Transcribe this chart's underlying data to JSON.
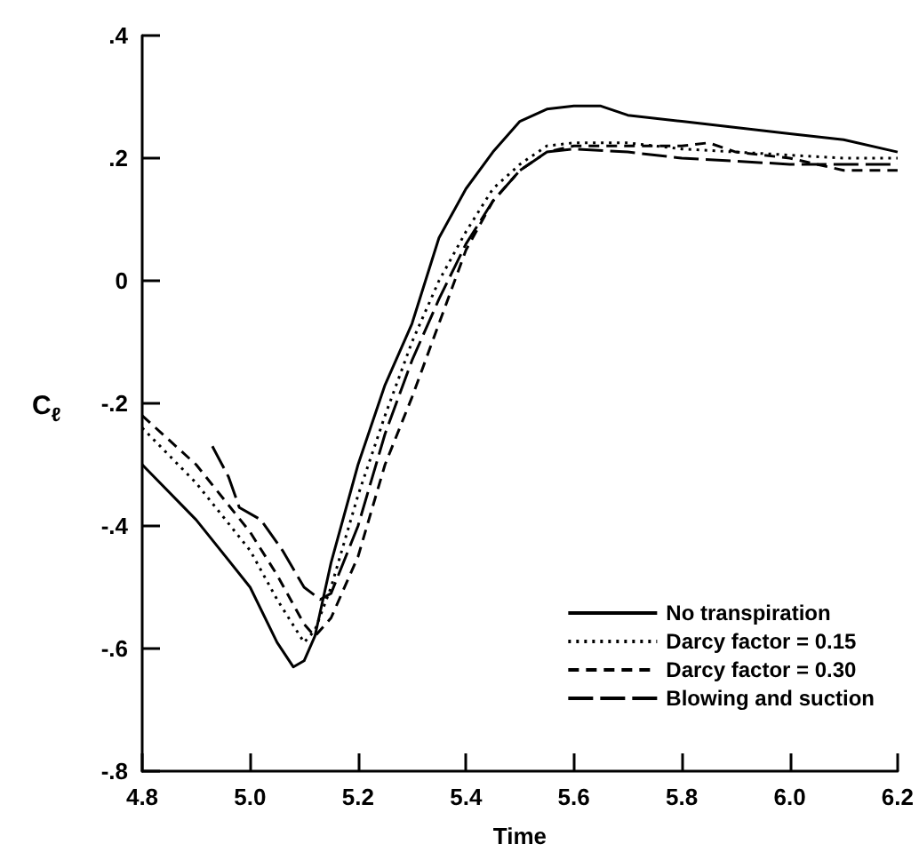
{
  "chart_data": {
    "type": "line",
    "xlabel": "Time",
    "ylabel": "C$_{ℓ}$",
    "xlim": [
      4.8,
      6.2
    ],
    "ylim": [
      -0.8,
      0.4
    ],
    "xticks": [
      4.8,
      {
        "value": 5.0,
        "label": "5.0"
      },
      5.2,
      5.4,
      5.6,
      5.8,
      {
        "value": 6.0,
        "label": "6.0"
      },
      6.2
    ],
    "yticks": [
      {
        "value": -0.8,
        "label": "-.8"
      },
      {
        "value": -0.6,
        "label": "-.6"
      },
      {
        "value": -0.4,
        "label": "-.4"
      },
      {
        "value": -0.2,
        "label": "-.2"
      },
      0,
      {
        "value": 0.2,
        "label": ".2"
      },
      {
        "value": 0.4,
        "label": ".4"
      }
    ],
    "grid": false,
    "legend": "bottom right",
    "marker": "none",
    "series": [
      {
        "name": "No transpiration",
        "color": "#000000",
        "line_style": "solid",
        "x": [
          4.8,
          4.9,
          5.0,
          5.05,
          5.08,
          5.1,
          5.12,
          5.15,
          5.2,
          5.25,
          5.3,
          5.35,
          5.4,
          5.45,
          5.5,
          5.55,
          5.6,
          5.65,
          5.7,
          5.8,
          5.9,
          6.0,
          6.1,
          6.2
        ],
        "values": [
          -0.3,
          -0.39,
          -0.5,
          -0.59,
          -0.63,
          -0.62,
          -0.58,
          -0.46,
          -0.3,
          -0.17,
          -0.07,
          0.07,
          0.15,
          0.21,
          0.26,
          0.28,
          0.285,
          0.285,
          0.27,
          0.26,
          0.25,
          0.24,
          0.23,
          0.21
        ]
      },
      {
        "name": "Darcy factor = 0.15",
        "color": "#000000",
        "line_style": "dotted",
        "x": [
          4.8,
          4.9,
          5.0,
          5.05,
          5.1,
          5.12,
          5.15,
          5.2,
          5.25,
          5.3,
          5.35,
          5.4,
          5.45,
          5.5,
          5.55,
          5.6,
          5.7,
          5.8,
          5.9,
          6.0,
          6.1,
          6.2
        ],
        "values": [
          -0.24,
          -0.33,
          -0.44,
          -0.52,
          -0.59,
          -0.57,
          -0.5,
          -0.35,
          -0.22,
          -0.1,
          0.0,
          0.08,
          0.15,
          0.19,
          0.22,
          0.225,
          0.225,
          0.215,
          0.21,
          0.205,
          0.2,
          0.2
        ]
      },
      {
        "name": "Darcy factor = 0.30",
        "color": "#000000",
        "line_style": "dashed",
        "x": [
          4.8,
          4.9,
          5.0,
          5.05,
          5.1,
          5.12,
          5.15,
          5.2,
          5.25,
          5.3,
          5.35,
          5.4,
          5.45,
          5.5,
          5.55,
          5.6,
          5.7,
          5.8,
          5.85,
          5.9,
          6.0,
          6.1,
          6.2
        ],
        "values": [
          -0.22,
          -0.3,
          -0.41,
          -0.48,
          -0.56,
          -0.58,
          -0.55,
          -0.45,
          -0.3,
          -0.19,
          -0.07,
          0.05,
          0.13,
          0.18,
          0.21,
          0.22,
          0.22,
          0.22,
          0.225,
          0.21,
          0.2,
          0.18,
          0.18
        ]
      },
      {
        "name": "Blowing and suction",
        "color": "#000000",
        "line_style": "longdash",
        "x": [
          4.93,
          4.96,
          4.98,
          5.02,
          5.06,
          5.1,
          5.13,
          5.15,
          5.2,
          5.25,
          5.3,
          5.35,
          5.4,
          5.45,
          5.5,
          5.55,
          5.6,
          5.7,
          5.8,
          5.9,
          6.0,
          6.1,
          6.2
        ],
        "values": [
          -0.27,
          -0.32,
          -0.37,
          -0.39,
          -0.44,
          -0.5,
          -0.52,
          -0.51,
          -0.4,
          -0.25,
          -0.13,
          -0.03,
          0.06,
          0.13,
          0.18,
          0.21,
          0.215,
          0.21,
          0.2,
          0.195,
          0.19,
          0.19,
          0.19
        ]
      }
    ]
  }
}
